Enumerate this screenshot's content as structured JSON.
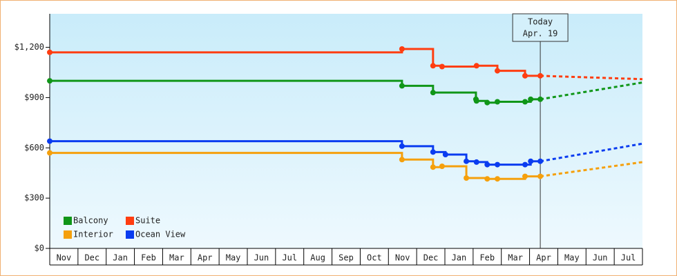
{
  "chart_data": {
    "type": "step-line",
    "categories": [
      "Nov",
      "Dec",
      "Jan",
      "Feb",
      "Mar",
      "Apr",
      "May",
      "Jun",
      "Jul",
      "Aug",
      "Sep",
      "Oct",
      "Nov",
      "Dec",
      "Jan",
      "Feb",
      "Mar",
      "Apr",
      "May",
      "Jun",
      "Jul"
    ],
    "xlim": [
      0,
      21
    ],
    "ylim": [
      0,
      1400
    ],
    "yticks": [
      {
        "value": 0,
        "label": "$0"
      },
      {
        "value": 300,
        "label": "$300"
      },
      {
        "value": 600,
        "label": "$600"
      },
      {
        "value": 900,
        "label": "$900"
      },
      {
        "value": 1200,
        "label": "$1,200"
      }
    ],
    "grid": false,
    "legend": "lower left",
    "today": {
      "label": "Today",
      "date": "Apr. 19",
      "x": 17.38
    },
    "series": [
      {
        "name": "Balcony",
        "color": "#109618",
        "x": [
          0,
          12.48,
          13.58,
          15.1,
          15.12,
          15.5,
          15.86,
          16.84,
          17.04,
          17.38
        ],
        "values": [
          1000,
          970,
          930,
          890,
          880,
          870,
          875,
          875,
          890,
          890
        ],
        "forecast_x": [
          21
        ],
        "forecast_values": [
          990
        ]
      },
      {
        "name": "Suite",
        "color": "#ff3d10",
        "x": [
          0,
          12.48,
          13.58,
          13.9,
          15.12,
          15.86,
          16.84,
          17.38
        ],
        "values": [
          1170,
          1190,
          1090,
          1085,
          1090,
          1060,
          1030,
          1030
        ],
        "forecast_x": [
          21
        ],
        "forecast_values": [
          1010
        ]
      },
      {
        "name": "Interior",
        "color": "#f5a00c",
        "x": [
          0,
          12.48,
          13.58,
          13.9,
          14.76,
          15.5,
          15.86,
          16.84,
          17.38
        ],
        "values": [
          570,
          530,
          485,
          490,
          420,
          415,
          415,
          430,
          430
        ],
        "forecast_x": [
          21
        ],
        "forecast_values": [
          515
        ]
      },
      {
        "name": "Ocean View",
        "color": "#0a3cf0",
        "x": [
          0,
          12.48,
          13.58,
          14.02,
          14.76,
          15.12,
          15.5,
          15.86,
          16.84,
          17.04,
          17.38
        ],
        "values": [
          640,
          610,
          575,
          560,
          520,
          515,
          500,
          500,
          500,
          520,
          520
        ],
        "forecast_x": [
          21
        ],
        "forecast_values": [
          625
        ]
      }
    ]
  }
}
